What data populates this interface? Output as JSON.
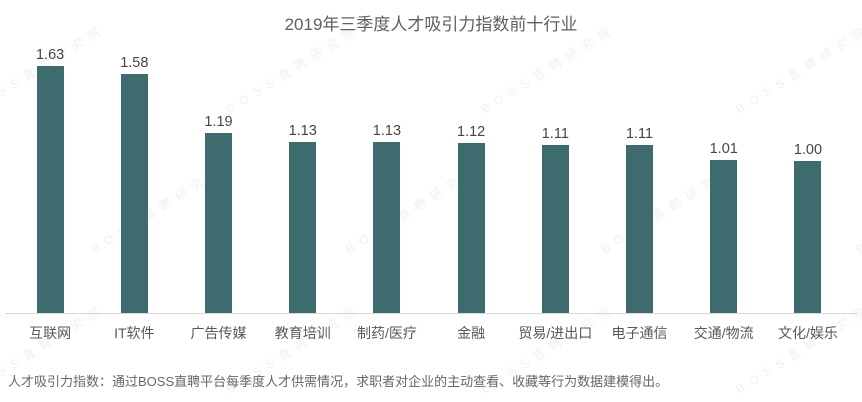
{
  "title": "2019年三季度人才吸引力指数前十行业",
  "footer": "人才吸引力指数：通过BOSS直聘平台每季度人才供需情况，求职者对企业的主动查看、收藏等行为数据建模得出。",
  "watermark_text": "BOSS直聘研究院",
  "colors": {
    "bar": "#3d6b6e",
    "title_text": "#5f5f5f",
    "value_label": "#454545",
    "category_label": "#595959",
    "axis_line": "#d8d8d8",
    "footer_text": "#666666"
  },
  "chart_data": {
    "type": "bar",
    "title": "2019年三季度人才吸引力指数前十行业",
    "categories": [
      "互联网",
      "IT软件",
      "广告传媒",
      "教育培训",
      "制药/医疗",
      "金融",
      "贸易/进出口",
      "电子通信",
      "交通/物流",
      "文化/娱乐"
    ],
    "values": [
      1.63,
      1.58,
      1.19,
      1.13,
      1.13,
      1.12,
      1.11,
      1.11,
      1.01,
      1.0
    ],
    "value_labels": [
      "1.63",
      "1.58",
      "1.19",
      "1.13",
      "1.13",
      "1.12",
      "1.11",
      "1.11",
      "1.01",
      "1.00"
    ],
    "xlabel": "",
    "ylabel": "",
    "ylim": [
      0,
      2.07
    ],
    "grid": false,
    "legend": null,
    "bar_color": "#3d6b6e",
    "annotation": "人才吸引力指数：通过BOSS直聘平台每季度人才供需情况，求职者对企业的主动查看、收藏等行为数据建模得出。"
  }
}
